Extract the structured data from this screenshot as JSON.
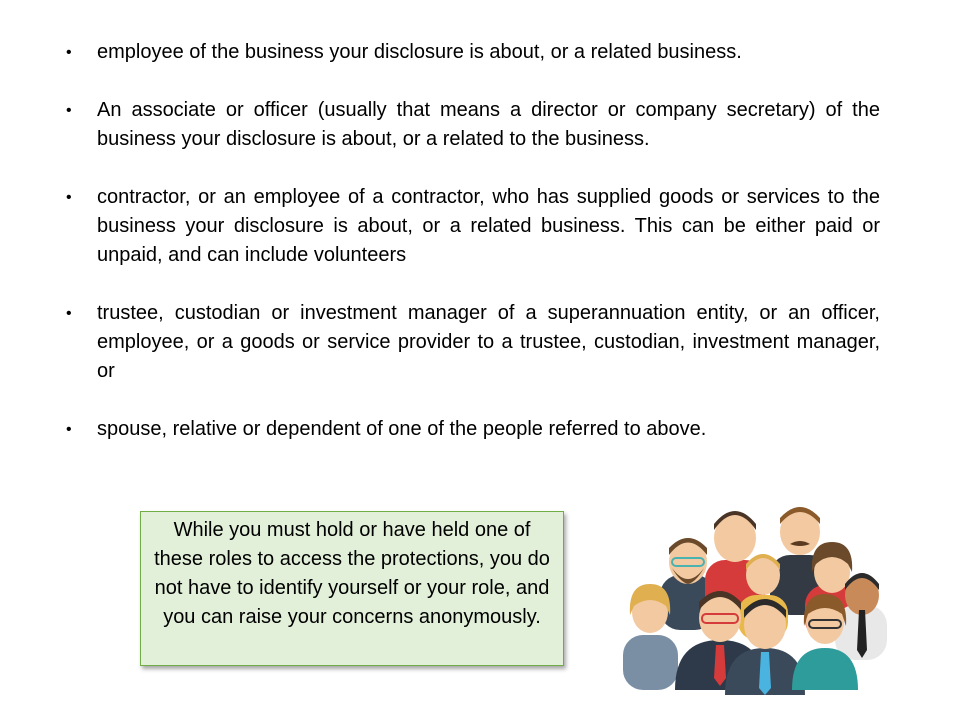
{
  "bullets": [
    "employee of the business your disclosure is about, or a related business.",
    "An associate or officer (usually that means a director or company secretary) of the business your disclosure is about, or a related to the business.",
    "contractor, or an employee of a contractor, who has supplied goods or services to the business your disclosure is about, or a related business. This can be either paid or unpaid, and can include volunteers",
    "trustee, custodian or investment manager of a superannuation entity, or an officer, employee, or a goods or service provider to a trustee, custodian, investment manager, or",
    "spouse, relative or dependent of one of the people referred to above."
  ],
  "bullet_symbol": "•",
  "callout": {
    "text": "While you must hold or have held one of these roles to access the protections, you do not have to identify yourself or your role, and you can raise your concerns anonymously."
  },
  "colors": {
    "callout_fill": "#e2f0d9",
    "callout_border": "#70ad47"
  },
  "illustration": {
    "icon": "people-group-icon"
  }
}
